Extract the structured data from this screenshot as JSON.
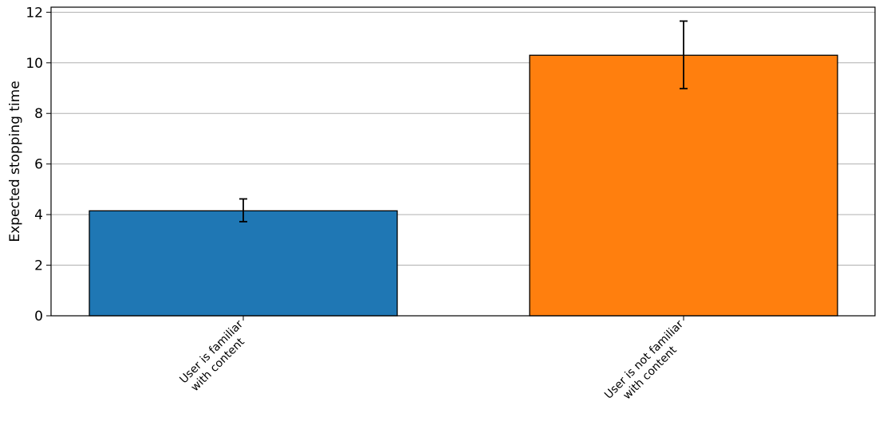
{
  "chart_data": {
    "type": "bar",
    "title": "",
    "xlabel": "",
    "ylabel": "Expected stopping time",
    "ylim": [
      0,
      12.2
    ],
    "yticks": [
      0,
      2,
      4,
      6,
      8,
      10,
      12
    ],
    "grid": "horizontal",
    "categories": [
      [
        "User is familiar",
        "with content"
      ],
      [
        "User is not familiar",
        "with content"
      ]
    ],
    "values": [
      4.15,
      10.3
    ],
    "errors": [
      [
        3.72,
        4.62
      ],
      [
        8.98,
        11.65
      ]
    ],
    "colors": [
      "#1f77b4",
      "#ff7f0e"
    ]
  }
}
